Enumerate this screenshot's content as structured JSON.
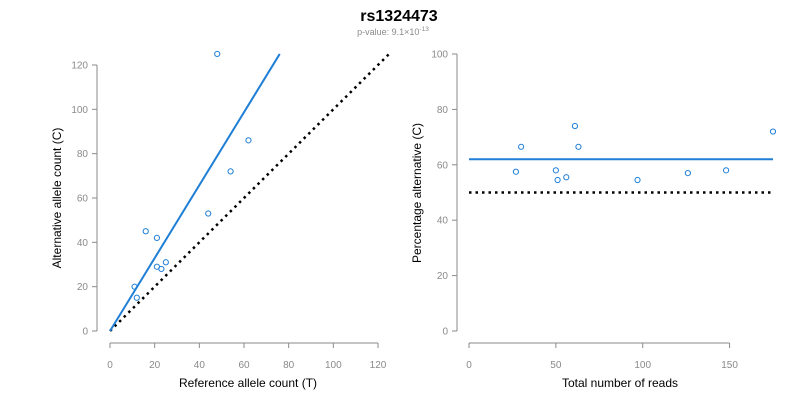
{
  "page": {
    "title": "rs1324473",
    "subtitle_prefix": "p-value: 9.1×10",
    "subtitle_exponent": "-13"
  },
  "colors": {
    "accent": "#1f7fd6",
    "reference_line": "#000000",
    "axis": "#8a8a8a"
  },
  "chart_data": [
    {
      "type": "scatter",
      "xlabel": "Reference allele count (T)",
      "ylabel": "Alternative allele count (C)",
      "xlim": [
        0,
        120
      ],
      "ylim": [
        0,
        120
      ],
      "xticks": [
        0,
        20,
        40,
        60,
        80,
        100,
        120
      ],
      "yticks": [
        0,
        20,
        40,
        60,
        80,
        100,
        120
      ],
      "grid": false,
      "points": [
        {
          "x": 48,
          "y": 125
        },
        {
          "x": 62,
          "y": 86
        },
        {
          "x": 54,
          "y": 72
        },
        {
          "x": 44,
          "y": 53
        },
        {
          "x": 16,
          "y": 45
        },
        {
          "x": 21,
          "y": 42
        },
        {
          "x": 25,
          "y": 31
        },
        {
          "x": 21,
          "y": 29
        },
        {
          "x": 23,
          "y": 28
        },
        {
          "x": 11,
          "y": 20
        },
        {
          "x": 12,
          "y": 15
        }
      ],
      "fit_line": {
        "x": [
          0,
          76
        ],
        "y": [
          0,
          125
        ]
      },
      "reference_line": {
        "x": [
          0,
          125
        ],
        "y": [
          0,
          125
        ]
      }
    },
    {
      "type": "scatter",
      "xlabel": "Total number of reads",
      "ylabel": "Percentage alternative (C)",
      "xlim": [
        0,
        175
      ],
      "ylim": [
        0,
        100
      ],
      "xticks": [
        0,
        50,
        100,
        150
      ],
      "yticks": [
        0,
        20,
        40,
        60,
        80,
        100
      ],
      "grid": false,
      "points": [
        {
          "x": 27,
          "y": 57.5
        },
        {
          "x": 30,
          "y": 66.5
        },
        {
          "x": 50,
          "y": 58
        },
        {
          "x": 51,
          "y": 54.5
        },
        {
          "x": 56,
          "y": 55.5
        },
        {
          "x": 61,
          "y": 74
        },
        {
          "x": 63,
          "y": 66.5
        },
        {
          "x": 97,
          "y": 54.5
        },
        {
          "x": 126,
          "y": 57
        },
        {
          "x": 148,
          "y": 58
        },
        {
          "x": 175,
          "y": 72
        }
      ],
      "fit_line": {
        "x": [
          0,
          175
        ],
        "y": [
          62,
          62
        ]
      },
      "reference_line": {
        "x": [
          0,
          175
        ],
        "y": [
          50,
          50
        ]
      }
    }
  ]
}
